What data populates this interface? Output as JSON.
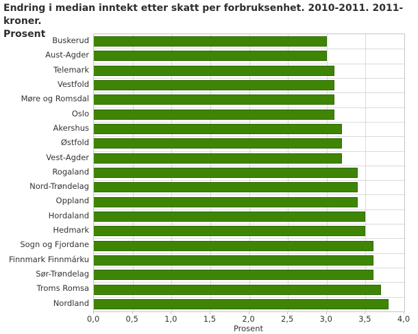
{
  "title": {
    "line1": "Endring i median inntekt etter skatt per forbruksenhet. 2010-2011. 2011-kroner.",
    "line2": "Prosent"
  },
  "colors": {
    "bar_fill": "#3e8505",
    "bar_border": "#306703",
    "gridline": "#d9d9d9",
    "plot_border": "#c5c5c5",
    "text": "#333333",
    "title_text": "#2e2e2e",
    "background": "#ffffff"
  },
  "chart_data": {
    "type": "bar",
    "orientation": "horizontal",
    "title": "Endring i median inntekt etter skatt per forbruksenhet. 2010-2011. 2011-kroner. Prosent",
    "categories": [
      "Buskerud",
      "Aust-Agder",
      "Telemark",
      "Vestfold",
      "Møre og Romsdal",
      "Oslo",
      "Akershus",
      "Østfold",
      "Vest-Agder",
      "Rogaland",
      "Nord-Trøndelag",
      "Oppland",
      "Hordaland",
      "Hedmark",
      "Sogn og Fjordane",
      "Finnmark Finnmárku",
      "Sør-Trøndelag",
      "Troms Romsa",
      "Nordland"
    ],
    "values": [
      3.0,
      3.0,
      3.1,
      3.1,
      3.1,
      3.1,
      3.2,
      3.2,
      3.2,
      3.4,
      3.4,
      3.4,
      3.5,
      3.5,
      3.6,
      3.6,
      3.6,
      3.7,
      3.8
    ],
    "xlabel": "Prosent",
    "ylabel": "",
    "xlim": [
      0.0,
      4.0
    ],
    "xtick_step": 0.5,
    "xtick_labels": [
      "0,0",
      "0,5",
      "1,0",
      "1,5",
      "2,0",
      "2,5",
      "3,0",
      "3,5",
      "4,0"
    ],
    "grid": true,
    "legend": "none"
  }
}
